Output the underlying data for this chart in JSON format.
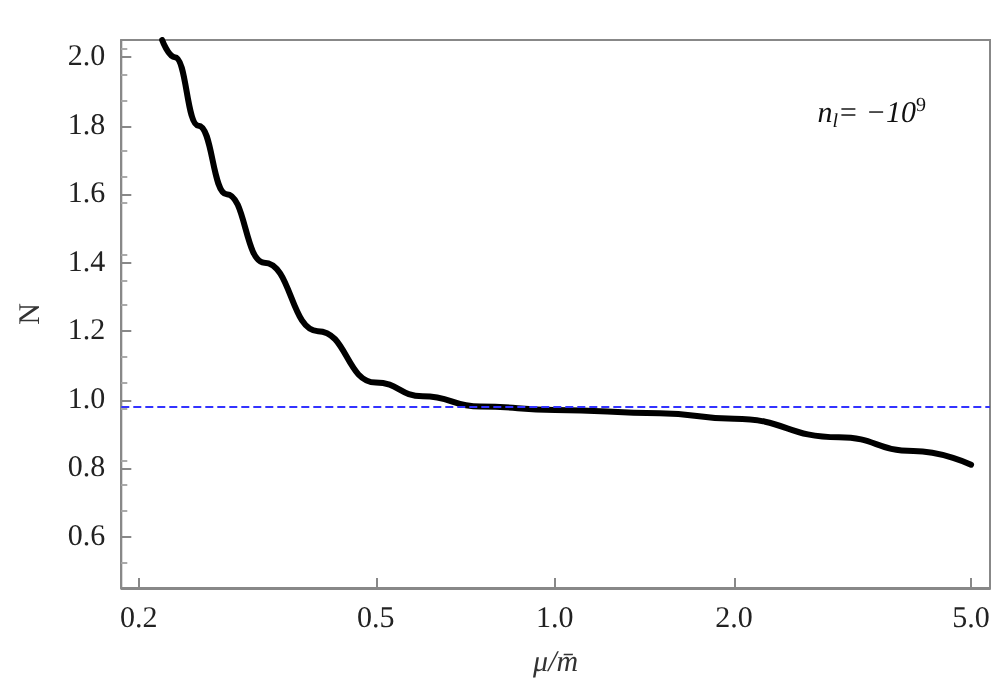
{
  "chart_data": {
    "type": "line",
    "xlabel": "μ/m̄",
    "ylabel": "N",
    "annotations": [
      "n$_{l}$= −10$^{9}$"
    ],
    "log": "x",
    "xlim": [
      0.187,
      5.38
    ],
    "ylim": [
      0.45,
      2.05
    ],
    "xticks": [
      0.2,
      0.5,
      {
        "value": 1,
        "label": "1.0"
      },
      {
        "value": 2,
        "label": "2.0"
      },
      {
        "value": 5,
        "label": "5.0"
      }
    ],
    "yticks": [
      0.6,
      0.8,
      {
        "value": 1,
        "label": "1.0"
      },
      1.2,
      1.4,
      1.6,
      1.8,
      {
        "value": 2,
        "label": "2.0"
      }
    ],
    "series": [
      {
        "color": "#000000",
        "x": [
          0.219,
          0.23,
          0.252,
          0.281,
          0.325,
          0.4,
          0.5,
          0.6,
          0.75,
          1.0,
          1.5,
          2.0,
          3.0,
          4.0,
          5.0
        ],
        "values": [
          2.05,
          2.0,
          1.8,
          1.6,
          1.4,
          1.2,
          1.05,
          1.01,
          0.98,
          0.97,
          0.96,
          0.944,
          0.89,
          0.85,
          0.81
        ]
      }
    ],
    "ref_lines": [
      {
        "axis": "y",
        "value": 0.98,
        "color": "#3333ff",
        "line_style": "dashed"
      }
    ],
    "marker": "none",
    "line_style": "solid",
    "grid": false
  }
}
